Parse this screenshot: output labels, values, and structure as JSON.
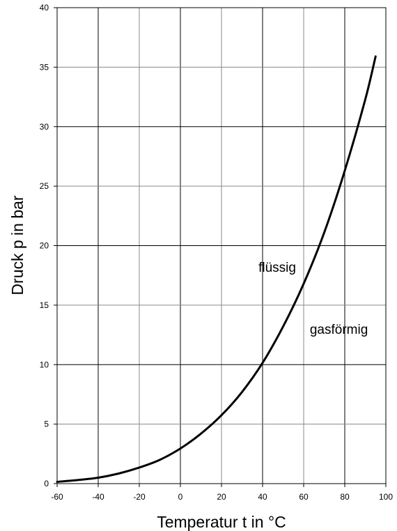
{
  "chart_data": {
    "type": "line",
    "title": "",
    "xlabel": "Temperatur t in °C",
    "ylabel": "Druck p in bar",
    "xlim": [
      -60,
      100
    ],
    "ylim": [
      0,
      40
    ],
    "x_ticks": [
      -60,
      -40,
      -20,
      0,
      20,
      40,
      60,
      80,
      100
    ],
    "y_ticks": [
      0,
      5,
      10,
      15,
      20,
      25,
      30,
      35,
      40
    ],
    "grid": true,
    "legend": "none",
    "series": [
      {
        "x": [
          -60,
          -50,
          -40,
          -30,
          -20,
          -10,
          0,
          10,
          20,
          30,
          40,
          50,
          60,
          70,
          80,
          90,
          95
        ],
        "y": [
          0.15,
          0.3,
          0.5,
          0.85,
          1.35,
          2.0,
          2.95,
          4.2,
          5.75,
          7.7,
          10.15,
          13.2,
          16.8,
          21.1,
          26.3,
          32.3,
          35.9
        ],
        "color": "#000000"
      }
    ],
    "annotations": [
      {
        "text": "flüssig",
        "x": 38,
        "y": 17.8
      },
      {
        "text": "gasförmig",
        "x": 63,
        "y": 12.6
      }
    ]
  }
}
